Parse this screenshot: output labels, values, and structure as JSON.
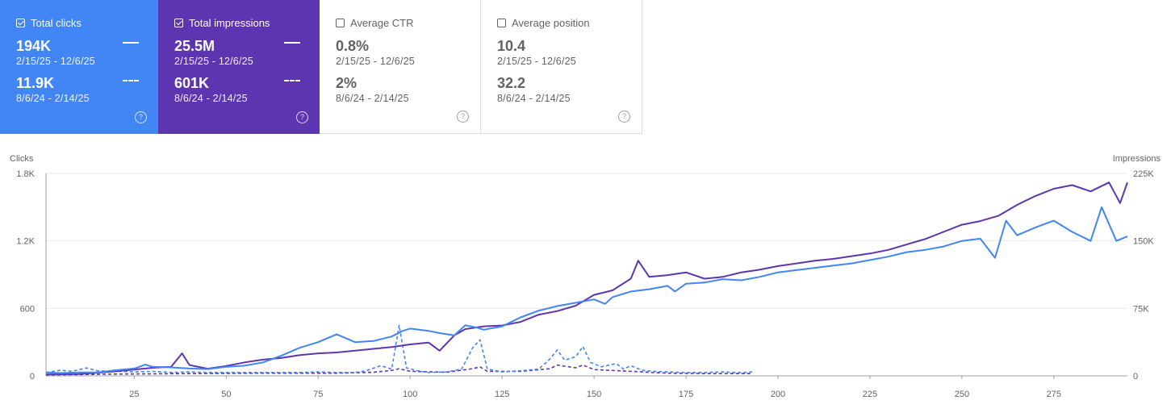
{
  "cards": [
    {
      "label": "Total clicks",
      "checked": true,
      "current_value": "194K",
      "current_range": "2/15/25 - 12/6/25",
      "previous_value": "11.9K",
      "previous_range": "8/6/24 - 2/14/25",
      "color": "#4285f4"
    },
    {
      "label": "Total impressions",
      "checked": true,
      "current_value": "25.5M",
      "current_range": "2/15/25 - 12/6/25",
      "previous_value": "601K",
      "previous_range": "8/6/24 - 2/14/25",
      "color": "#5e35b1"
    },
    {
      "label": "Average CTR",
      "checked": false,
      "current_value": "0.8%",
      "current_range": "2/15/25 - 12/6/25",
      "previous_value": "2%",
      "previous_range": "8/6/24 - 2/14/25"
    },
    {
      "label": "Average position",
      "checked": false,
      "current_value": "10.4",
      "current_range": "2/15/25 - 12/6/25",
      "previous_value": "32.2",
      "previous_range": "8/6/24 - 2/14/25"
    }
  ],
  "help_glyph": "?",
  "chart_data": {
    "type": "line",
    "ylabel_left": "Clicks",
    "ylabel_right": "Impressions",
    "yticks_left": [
      "0",
      "600",
      "1.2K",
      "1.8K"
    ],
    "yticks_right": [
      "0",
      "75K",
      "150K",
      "225K"
    ],
    "ylim_left": [
      0,
      1800
    ],
    "ylim_right": [
      0,
      225000
    ],
    "xlim": [
      1,
      295
    ],
    "xticks": [
      25,
      50,
      75,
      100,
      125,
      150,
      175,
      200,
      225,
      250,
      275
    ],
    "grid": true,
    "series": [
      {
        "name": "Total clicks",
        "axis": "left",
        "style": "solid",
        "color": "#4285f4",
        "points": [
          [
            1,
            30
          ],
          [
            5,
            25
          ],
          [
            10,
            30
          ],
          [
            15,
            30
          ],
          [
            20,
            50
          ],
          [
            25,
            65
          ],
          [
            28,
            100
          ],
          [
            30,
            80
          ],
          [
            35,
            75
          ],
          [
            40,
            65
          ],
          [
            45,
            60
          ],
          [
            50,
            80
          ],
          [
            55,
            90
          ],
          [
            60,
            120
          ],
          [
            65,
            180
          ],
          [
            70,
            250
          ],
          [
            75,
            300
          ],
          [
            80,
            370
          ],
          [
            85,
            300
          ],
          [
            90,
            310
          ],
          [
            95,
            350
          ],
          [
            98,
            400
          ],
          [
            100,
            420
          ],
          [
            105,
            400
          ],
          [
            108,
            380
          ],
          [
            112,
            360
          ],
          [
            115,
            450
          ],
          [
            118,
            430
          ],
          [
            120,
            410
          ],
          [
            125,
            440
          ],
          [
            130,
            520
          ],
          [
            135,
            580
          ],
          [
            140,
            620
          ],
          [
            145,
            650
          ],
          [
            150,
            680
          ],
          [
            153,
            640
          ],
          [
            155,
            700
          ],
          [
            160,
            750
          ],
          [
            165,
            770
          ],
          [
            170,
            800
          ],
          [
            172,
            750
          ],
          [
            175,
            820
          ],
          [
            180,
            830
          ],
          [
            185,
            860
          ],
          [
            190,
            850
          ],
          [
            195,
            880
          ],
          [
            200,
            920
          ],
          [
            205,
            940
          ],
          [
            210,
            960
          ],
          [
            215,
            980
          ],
          [
            220,
            1000
          ],
          [
            225,
            1030
          ],
          [
            230,
            1060
          ],
          [
            235,
            1100
          ],
          [
            240,
            1120
          ],
          [
            245,
            1150
          ],
          [
            250,
            1200
          ],
          [
            255,
            1220
          ],
          [
            259,
            1050
          ],
          [
            262,
            1380
          ],
          [
            265,
            1250
          ],
          [
            270,
            1320
          ],
          [
            275,
            1380
          ],
          [
            280,
            1280
          ],
          [
            285,
            1200
          ],
          [
            288,
            1500
          ],
          [
            292,
            1200
          ],
          [
            295,
            1240
          ]
        ]
      },
      {
        "name": "Total impressions",
        "axis": "right",
        "style": "solid",
        "color": "#5e35b1",
        "points": [
          [
            1,
            1500
          ],
          [
            10,
            2000
          ],
          [
            20,
            5000
          ],
          [
            30,
            9000
          ],
          [
            35,
            10000
          ],
          [
            38,
            25000
          ],
          [
            40,
            12000
          ],
          [
            45,
            8000
          ],
          [
            50,
            11000
          ],
          [
            55,
            15000
          ],
          [
            60,
            18000
          ],
          [
            65,
            20000
          ],
          [
            70,
            23000
          ],
          [
            75,
            25000
          ],
          [
            80,
            26000
          ],
          [
            90,
            30000
          ],
          [
            95,
            32000
          ],
          [
            100,
            35000
          ],
          [
            105,
            37000
          ],
          [
            108,
            28000
          ],
          [
            112,
            45000
          ],
          [
            115,
            52000
          ],
          [
            120,
            55000
          ],
          [
            125,
            56000
          ],
          [
            130,
            60000
          ],
          [
            135,
            68000
          ],
          [
            140,
            72000
          ],
          [
            145,
            78000
          ],
          [
            150,
            90000
          ],
          [
            155,
            95000
          ],
          [
            160,
            108000
          ],
          [
            162,
            128000
          ],
          [
            165,
            110000
          ],
          [
            170,
            112000
          ],
          [
            175,
            115000
          ],
          [
            180,
            108000
          ],
          [
            185,
            110000
          ],
          [
            190,
            115000
          ],
          [
            195,
            118000
          ],
          [
            200,
            122000
          ],
          [
            205,
            125000
          ],
          [
            210,
            128000
          ],
          [
            215,
            130000
          ],
          [
            220,
            133000
          ],
          [
            225,
            136000
          ],
          [
            230,
            140000
          ],
          [
            235,
            146000
          ],
          [
            240,
            152000
          ],
          [
            245,
            160000
          ],
          [
            250,
            168000
          ],
          [
            255,
            172000
          ],
          [
            260,
            178000
          ],
          [
            265,
            190000
          ],
          [
            270,
            200000
          ],
          [
            275,
            208000
          ],
          [
            280,
            212000
          ],
          [
            285,
            205000
          ],
          [
            290,
            215000
          ],
          [
            293,
            192000
          ],
          [
            295,
            215000
          ]
        ]
      },
      {
        "name": "Total clicks (previous)",
        "axis": "left",
        "style": "dashed",
        "color": "#4285f4",
        "points": [
          [
            1,
            30
          ],
          [
            5,
            50
          ],
          [
            8,
            40
          ],
          [
            12,
            70
          ],
          [
            15,
            45
          ],
          [
            20,
            40
          ],
          [
            25,
            35
          ],
          [
            30,
            40
          ],
          [
            35,
            30
          ],
          [
            40,
            35
          ],
          [
            45,
            30
          ],
          [
            50,
            30
          ],
          [
            55,
            30
          ],
          [
            60,
            30
          ],
          [
            65,
            30
          ],
          [
            70,
            30
          ],
          [
            75,
            35
          ],
          [
            80,
            30
          ],
          [
            85,
            30
          ],
          [
            88,
            45
          ],
          [
            92,
            90
          ],
          [
            95,
            60
          ],
          [
            97,
            450
          ],
          [
            99,
            70
          ],
          [
            102,
            45
          ],
          [
            105,
            30
          ],
          [
            110,
            35
          ],
          [
            114,
            60
          ],
          [
            117,
            250
          ],
          [
            119,
            320
          ],
          [
            121,
            60
          ],
          [
            125,
            35
          ],
          [
            130,
            45
          ],
          [
            135,
            60
          ],
          [
            138,
            150
          ],
          [
            140,
            230
          ],
          [
            142,
            140
          ],
          [
            145,
            170
          ],
          [
            147,
            260
          ],
          [
            149,
            120
          ],
          [
            152,
            80
          ],
          [
            156,
            110
          ],
          [
            158,
            60
          ],
          [
            160,
            90
          ],
          [
            163,
            50
          ],
          [
            166,
            40
          ],
          [
            170,
            35
          ],
          [
            175,
            30
          ],
          [
            180,
            30
          ],
          [
            185,
            35
          ],
          [
            188,
            30
          ],
          [
            191,
            30
          ],
          [
            193,
            35
          ]
        ]
      },
      {
        "name": "Total impressions (previous)",
        "axis": "right",
        "style": "dashed",
        "color": "#5e35b1",
        "points": [
          [
            1,
            1000
          ],
          [
            20,
            2000
          ],
          [
            40,
            2500
          ],
          [
            60,
            3000
          ],
          [
            80,
            3000
          ],
          [
            90,
            4000
          ],
          [
            95,
            6000
          ],
          [
            97,
            8000
          ],
          [
            100,
            5000
          ],
          [
            110,
            4000
          ],
          [
            117,
            8000
          ],
          [
            119,
            10000
          ],
          [
            121,
            5000
          ],
          [
            130,
            5000
          ],
          [
            138,
            8000
          ],
          [
            140,
            12000
          ],
          [
            145,
            9000
          ],
          [
            147,
            12000
          ],
          [
            150,
            7000
          ],
          [
            160,
            5000
          ],
          [
            170,
            3000
          ],
          [
            180,
            2500
          ],
          [
            193,
            2500
          ]
        ]
      }
    ]
  }
}
